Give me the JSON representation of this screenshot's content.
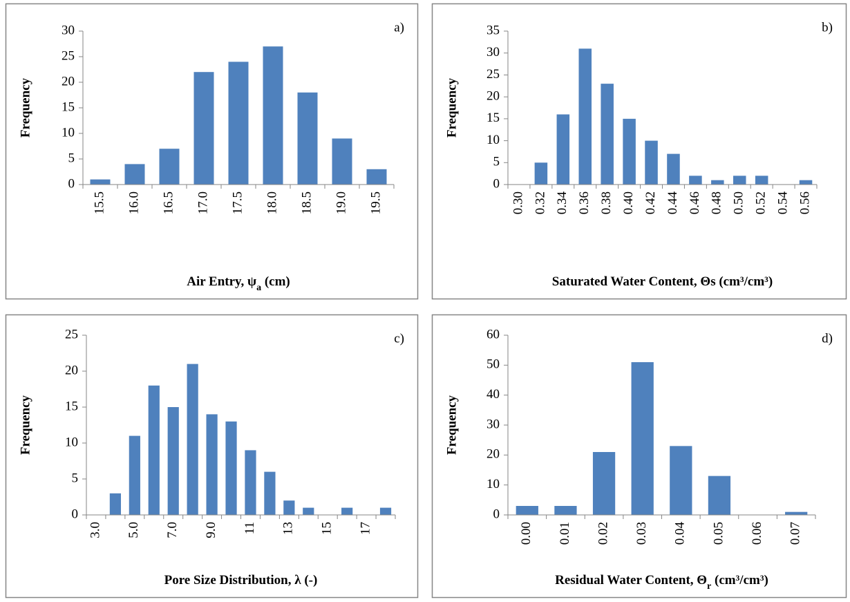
{
  "chart_data": [
    {
      "type": "bar",
      "label": "a)",
      "ylabel": "Frequency",
      "xlabel": [
        {
          "text": "Air Entry, ψ"
        },
        {
          "text": "a",
          "subscript": true
        },
        {
          "text": " (cm)"
        }
      ],
      "categories": [
        "15.5",
        "16.0",
        "16.5",
        "17.0",
        "17.5",
        "18.0",
        "18.5",
        "19.0",
        "19.5"
      ],
      "values": [
        1,
        4,
        7,
        22,
        24,
        27,
        18,
        9,
        3
      ],
      "color": "#4f81bd",
      "ylim": [
        0,
        30
      ],
      "yticks": [
        0,
        5,
        10,
        15,
        20,
        25,
        30
      ]
    },
    {
      "type": "bar",
      "label": "b)",
      "ylabel": "Frequency",
      "xlabel": [
        {
          "text": "Saturated Water Content, Θs (cm³/cm³)"
        }
      ],
      "categories": [
        "0.30",
        "0.32",
        "0.34",
        "0.36",
        "0.38",
        "0.40",
        "0.42",
        "0.44",
        "0.46",
        "0.48",
        "0.50",
        "0.52",
        "0.54",
        "0.56"
      ],
      "values": [
        0,
        5,
        16,
        31,
        23,
        15,
        10,
        7,
        2,
        1,
        2,
        2,
        0,
        1
      ],
      "color": "#4f81bd",
      "ylim": [
        0,
        35
      ],
      "yticks": [
        0,
        5,
        10,
        15,
        20,
        25,
        30,
        35
      ]
    },
    {
      "type": "bar",
      "label": "c)",
      "ylabel": "Frequency",
      "xlabel": [
        {
          "text": "Pore Size Distribution, λ (-)"
        }
      ],
      "categories": [
        "3.0",
        null,
        "5.0",
        null,
        "7.0",
        null,
        "9.0",
        null,
        "11",
        null,
        "13",
        null,
        "15",
        null,
        "17",
        null
      ],
      "values": [
        0,
        3,
        11,
        18,
        15,
        21,
        14,
        13,
        9,
        6,
        2,
        1,
        0,
        1,
        0,
        1
      ],
      "color": "#4f81bd",
      "ylim": [
        0,
        25
      ],
      "yticks": [
        0,
        5,
        10,
        15,
        20,
        25
      ]
    },
    {
      "type": "bar",
      "label": "d)",
      "ylabel": "Frequency",
      "xlabel": [
        {
          "text": "Residual Water Content, Θ"
        },
        {
          "text": "r",
          "subscript": true
        },
        {
          "text": " (cm³/cm³)"
        }
      ],
      "categories": [
        "0.00",
        "0.01",
        "0.02",
        "0.03",
        "0.04",
        "0.05",
        "0.06",
        "0.07"
      ],
      "values": [
        3,
        3,
        21,
        51,
        23,
        13,
        0,
        1
      ],
      "color": "#4f81bd",
      "ylim": [
        0,
        60
      ],
      "yticks": [
        0,
        10,
        20,
        30,
        40,
        50,
        60
      ]
    }
  ]
}
